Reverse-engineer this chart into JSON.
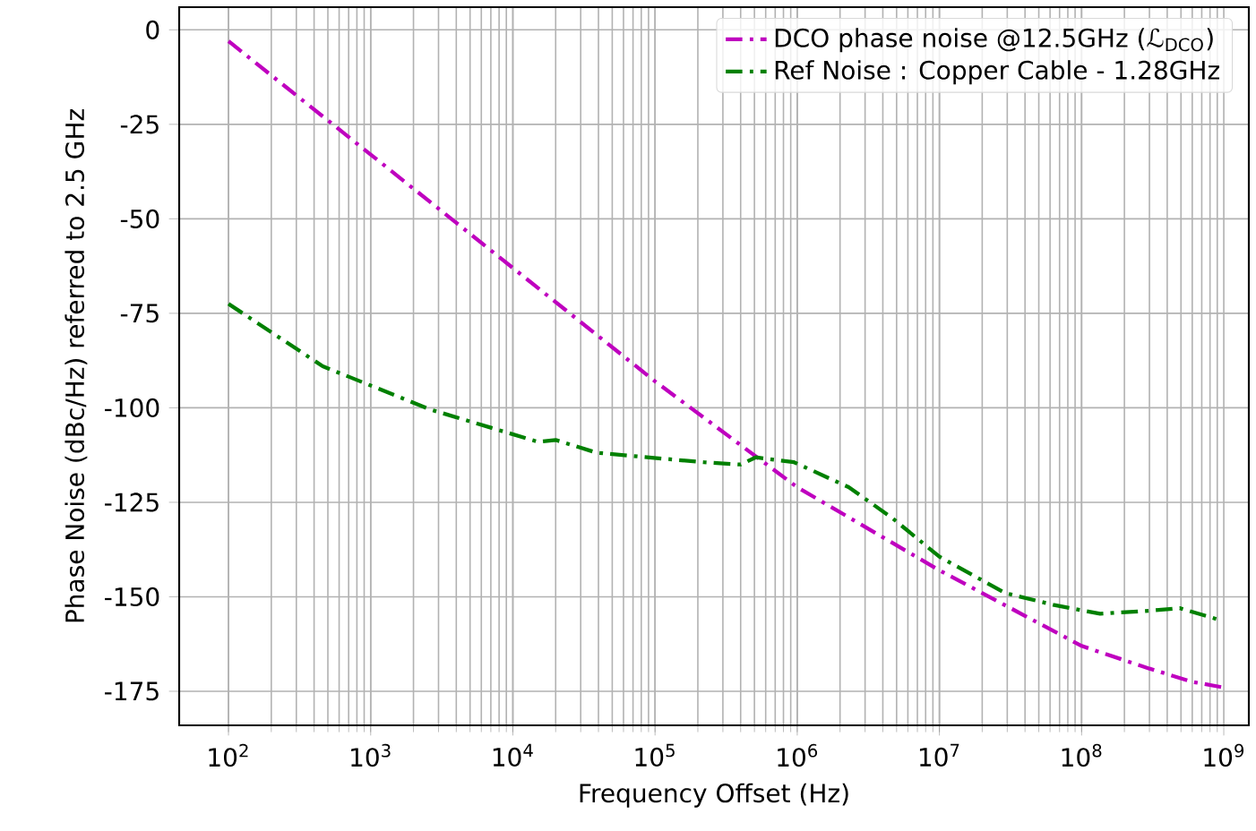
{
  "chart_data": {
    "type": "line",
    "xlabel": "Frequency Offset (Hz)",
    "ylabel": "Phase Noise (dBc/Hz) referred to 2.5 GHz",
    "log": "x",
    "grid": true,
    "legend": "top right",
    "line_style": "dashdot",
    "xlim": [
      45,
      1500000000
    ],
    "ylim": [
      -184,
      6
    ],
    "xticks": [
      {
        "value": 100,
        "label": "10$^{2}$"
      },
      {
        "value": 1000,
        "label": "10$^{3}$"
      },
      {
        "value": 10000,
        "label": "10$^{4}$"
      },
      {
        "value": 100000,
        "label": "10$^{5}$"
      },
      {
        "value": 1000000,
        "label": "10$^{6}$"
      },
      {
        "value": 10000000,
        "label": "10$^{7}$"
      },
      {
        "value": 100000000,
        "label": "10$^{8}$"
      },
      {
        "value": 1000000000,
        "label": "10$^{9}$"
      }
    ],
    "yticks": [
      0,
      -25,
      -50,
      -75,
      -100,
      -125,
      -150,
      -175
    ],
    "series": [
      {
        "name": "DCO phase noise @12.5GHz (ℒ$_{DCO}$)",
        "color": "#bf00bf",
        "x": [
          100,
          1000,
          10000,
          100000,
          1000000,
          10000000,
          100000000,
          300000000,
          600000000,
          1000000000
        ],
        "values": [
          -3,
          -33,
          -63,
          -93,
          -121,
          -143,
          -163,
          -169,
          -172.5,
          -174
        ]
      },
      {
        "name": "Ref Noise : Copper Cable - 1.28GHz",
        "color": "#008000",
        "x": [
          100,
          460,
          2600,
          15000,
          20000,
          39000,
          220000,
          400000,
          510000,
          950000,
          2300000,
          4600000,
          10000000,
          29000000,
          63000000,
          135000000,
          295000000,
          490000000,
          950000000
        ],
        "values": [
          -72.5,
          -89,
          -100.4,
          -109,
          -108.5,
          -111.9,
          -114.4,
          -115,
          -113.1,
          -114.4,
          -121,
          -129,
          -139.4,
          -149,
          -152.1,
          -154.5,
          -153.7,
          -153,
          -156.2
        ]
      }
    ]
  }
}
